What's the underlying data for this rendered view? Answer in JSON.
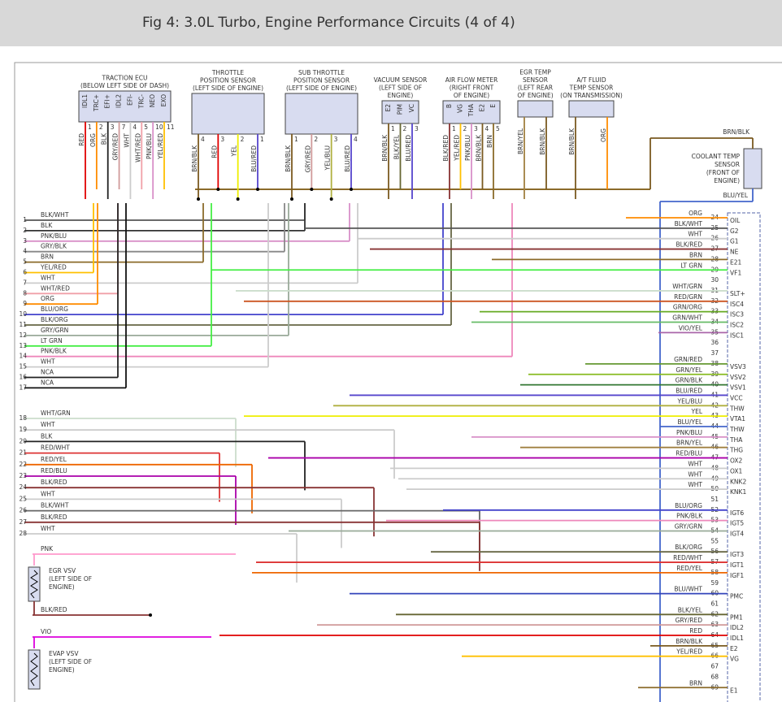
{
  "header": {
    "title": "Fig 4: 3.0L Turbo, Engine Performance Circuits (4 of 4)"
  },
  "components": [
    {
      "title": [
        "TRACTION ECU",
        "(BELOW LEFT SIDE OF DASH)"
      ],
      "pins": [
        {
          "name": "IDL1",
          "num": 1,
          "wire": "RED",
          "color": "#e00000"
        },
        {
          "name": "TRC+",
          "num": 2,
          "wire": "ORG",
          "color": "#ff8c00"
        },
        {
          "name": "EFI+",
          "num": 3,
          "wire": "BLK",
          "color": "#222222"
        },
        {
          "name": "IDL2",
          "num": 7,
          "wire": "GRY/RED",
          "color": "#d09a9a"
        },
        {
          "name": "EFI-",
          "num": 4,
          "wire": "WHT",
          "color": "#cccccc"
        },
        {
          "name": "TRC-",
          "num": 5,
          "wire": "WHT/RED",
          "color": "#f0a0a8"
        },
        {
          "name": "NEO",
          "num": 10,
          "wire": "PNK/BLU",
          "color": "#d890c8"
        },
        {
          "name": "EXO",
          "num": 11,
          "wire": "YEL/RED",
          "color": "#ffc000"
        }
      ]
    },
    {
      "title": [
        "THROTTLE",
        "POSITION SENSOR",
        "(LEFT SIDE OF ENGINE)"
      ],
      "pins": [
        {
          "num": 4,
          "wire": "BRN/BLK",
          "color": "#7a5a20"
        },
        {
          "num": 3,
          "wire": "RED",
          "color": "#e00000"
        },
        {
          "num": 2,
          "wire": "YEL",
          "color": "#eeee00"
        },
        {
          "num": 1,
          "wire": "BLU/RED",
          "color": "#5544cc"
        }
      ]
    },
    {
      "title": [
        "SUB THROTTLE",
        "POSITION SENSOR",
        "(LEFT SIDE OF ENGINE)"
      ],
      "pins": [
        {
          "num": 1,
          "wire": "BRN/BLK",
          "color": "#7a5a20"
        },
        {
          "num": 2,
          "wire": "GRY/RED",
          "color": "#d09a9a"
        },
        {
          "num": 3,
          "wire": "YEL/BLU",
          "color": "#b0b040"
        },
        {
          "num": 4,
          "wire": "BLU/RED",
          "color": "#5544cc"
        }
      ]
    },
    {
      "title": [
        "VACUUM SENSOR",
        "(LEFT SIDE OF",
        "ENGINE)"
      ],
      "pins": [
        {
          "name": "E2",
          "num": 1,
          "wire": "BRN/BLK",
          "color": "#7a5a20"
        },
        {
          "name": "PIM",
          "num": 2,
          "wire": "BLK/YEL",
          "color": "#666633"
        },
        {
          "name": "VC",
          "num": 3,
          "wire": "BLU/RED",
          "color": "#5544cc"
        }
      ]
    },
    {
      "title": [
        "AIR FLOW METER",
        "(RIGHT FRONT",
        "OF ENGINE)"
      ],
      "pins": [
        {
          "name": "B",
          "num": 1,
          "wire": "BLK/RED",
          "color": "#883333"
        },
        {
          "name": "VG",
          "num": 2,
          "wire": "YEL/RED",
          "color": "#ffc000"
        },
        {
          "name": "THA",
          "num": 3,
          "wire": "PNK/BLU",
          "color": "#d890c8"
        },
        {
          "name": "E2",
          "num": 4,
          "wire": "BRN/BLK",
          "color": "#7a5a20"
        },
        {
          "name": "E",
          "num": 5,
          "wire": "BRN",
          "color": "#8b6b2a"
        }
      ]
    },
    {
      "title": [
        "EGR TEMP",
        "SENSOR",
        "(LEFT REAR",
        "OF ENGINE)"
      ],
      "pins": [
        {
          "wire": "BRN/YEL",
          "color": "#a08040"
        },
        {
          "wire": "BRN/BLK",
          "color": "#7a5a20"
        }
      ]
    },
    {
      "title": [
        "A/T FLUID",
        "TEMP SENSOR",
        "(ON TRANSMISSION)"
      ],
      "pins": [
        {
          "wire": "BRN/BLK",
          "color": "#7a5a20"
        },
        {
          "wire": "ORG",
          "color": "#ff8c00"
        }
      ]
    },
    {
      "title": [
        "COOLANT TEMP",
        "SENSOR",
        "(FRONT OF",
        "ENGINE)"
      ],
      "pins": [
        {
          "wire": "BRN/BLK",
          "color": "#7a5a20"
        },
        {
          "wire": "BLU/YEL",
          "color": "#4466cc"
        }
      ]
    }
  ],
  "left_wires": [
    {
      "num": 1,
      "label": "BLK/WHT",
      "color": "#555555"
    },
    {
      "num": 2,
      "label": "BLK",
      "color": "#333333"
    },
    {
      "num": 3,
      "label": "PNK/BLU",
      "color": "#d890c8"
    },
    {
      "num": 4,
      "label": "GRY/BLK",
      "color": "#888888"
    },
    {
      "num": 5,
      "label": "BRN",
      "color": "#8b6b2a"
    },
    {
      "num": 6,
      "label": "YEL/RED",
      "color": "#ffc000"
    },
    {
      "num": 7,
      "label": "WHT",
      "color": "#cccccc"
    },
    {
      "num": 8,
      "label": "WHT/RED",
      "color": "#f0a0a8"
    },
    {
      "num": 9,
      "label": "ORG",
      "color": "#ff8c00"
    },
    {
      "num": 10,
      "label": "BLU/ORG",
      "color": "#4444cc"
    },
    {
      "num": 11,
      "label": "BLK/ORG",
      "color": "#666644"
    },
    {
      "num": 12,
      "label": "GRY/GRN",
      "color": "#99aa99"
    },
    {
      "num": 13,
      "label": "LT GRN",
      "color": "#44ee44"
    },
    {
      "num": 14,
      "label": "PNK/BLK",
      "color": "#ee88bb"
    },
    {
      "num": 15,
      "label": "WHT",
      "color": "#cccccc"
    },
    {
      "num": 16,
      "label": "NCA",
      "color": "#222222"
    },
    {
      "num": 17,
      "label": "NCA",
      "color": "#111111"
    },
    {
      "num": 18,
      "label": "WHT/GRN",
      "color": "#ccddcc"
    },
    {
      "num": 19,
      "label": "WHT",
      "color": "#cccccc"
    },
    {
      "num": 20,
      "label": "BLK",
      "color": "#222222"
    },
    {
      "num": 21,
      "label": "RED/WHT",
      "color": "#dd3333"
    },
    {
      "num": 22,
      "label": "RED/YEL",
      "color": "#ee6600"
    },
    {
      "num": 23,
      "label": "RED/BLU",
      "color": "#aa00aa"
    },
    {
      "num": 24,
      "label": "BLK/RED",
      "color": "#883333"
    },
    {
      "num": 25,
      "label": "WHT",
      "color": "#cccccc"
    },
    {
      "num": 26,
      "label": "BLK/WHT",
      "color": "#666666"
    },
    {
      "num": 27,
      "label": "BLK/RED",
      "color": "#883333"
    },
    {
      "num": 28,
      "label": "WHT",
      "color": "#cccccc"
    }
  ],
  "vsvs": [
    {
      "in_wire": "PNK",
      "in_color": "#ff99cc",
      "title": [
        "EGR VSV",
        "(LEFT SIDE OF",
        "ENGINE)"
      ],
      "out_wire": "BLK/RED",
      "out_color": "#883333"
    },
    {
      "in_wire": "VIO",
      "in_color": "#dd00dd",
      "title": [
        "EVAP VSV",
        "(LEFT SIDE OF",
        "ENGINE)"
      ]
    }
  ],
  "ecu_rows": [
    {
      "pin": 24,
      "wire": "ORG",
      "name": "OIL",
      "color": "#ff8c00"
    },
    {
      "pin": 25,
      "wire": "BLK/WHT",
      "name": "G2",
      "color": "#555555"
    },
    {
      "pin": 26,
      "wire": "WHT",
      "name": "G1",
      "color": "#cccccc"
    },
    {
      "pin": 27,
      "wire": "BLK/RED",
      "name": "NE",
      "color": "#883333"
    },
    {
      "pin": 28,
      "wire": "BRN",
      "name": "E21",
      "color": "#8b6b2a"
    },
    {
      "pin": 29,
      "wire": "LT GRN",
      "name": "VF1",
      "color": "#44ee44"
    },
    {
      "pin": 30
    },
    {
      "pin": 31,
      "wire": "WHT/GRN",
      "name": "SLT+",
      "color": "#ccddcc"
    },
    {
      "pin": 32,
      "wire": "RED/GRN",
      "name": "ISC4",
      "color": "#cc5522"
    },
    {
      "pin": 33,
      "wire": "GRN/ORG",
      "name": "ISC3",
      "color": "#66aa22"
    },
    {
      "pin": 34,
      "wire": "GRN/WHT",
      "name": "ISC2",
      "color": "#66bb66"
    },
    {
      "pin": 35,
      "wire": "VIO/YEL",
      "name": "ISC1",
      "color": "#aa66aa"
    },
    {
      "pin": 36
    },
    {
      "pin": 37
    },
    {
      "pin": 38,
      "wire": "GRN/RED",
      "name": "VSV3",
      "color": "#669933"
    },
    {
      "pin": 39,
      "wire": "GRN/YEL",
      "name": "VSV2",
      "color": "#88bb22"
    },
    {
      "pin": 40,
      "wire": "GRN/BLK",
      "name": "VSV1",
      "color": "#337733"
    },
    {
      "pin": 41,
      "wire": "BLU/RED",
      "name": "VCC",
      "color": "#5544cc"
    },
    {
      "pin": 42,
      "wire": "YEL/BLU",
      "name": "THW",
      "color": "#b0b040"
    },
    {
      "pin": 43,
      "wire": "YEL",
      "name": "VTA1",
      "color": "#eeee00"
    },
    {
      "pin": 44,
      "wire": "BLU/YEL",
      "name": "THW",
      "color": "#4466cc"
    },
    {
      "pin": 45,
      "wire": "PNK/BLU",
      "name": "THA",
      "color": "#d890c8"
    },
    {
      "pin": 46,
      "wire": "BRN/YEL",
      "name": "THG",
      "color": "#a08040"
    },
    {
      "pin": 47,
      "wire": "RED/BLU",
      "name": "OX2",
      "color": "#aa00aa"
    },
    {
      "pin": 48,
      "wire": "WHT",
      "name": "OX1",
      "color": "#cccccc"
    },
    {
      "pin": 49,
      "wire": "WHT",
      "name": "KNK2",
      "color": "#cccccc"
    },
    {
      "pin": 50,
      "wire": "WHT",
      "name": "KNK1",
      "color": "#cccccc"
    },
    {
      "pin": 51
    },
    {
      "pin": 52,
      "wire": "BLU/ORG",
      "name": "IGT6",
      "color": "#4444cc"
    },
    {
      "pin": 53,
      "wire": "PNK/BLK",
      "name": "IGT5",
      "color": "#ee88bb"
    },
    {
      "pin": 54,
      "wire": "GRY/GRN",
      "name": "IGT4",
      "color": "#99aa99"
    },
    {
      "pin": 55
    },
    {
      "pin": 56,
      "wire": "BLK/ORG",
      "name": "IGT3",
      "color": "#666644"
    },
    {
      "pin": 57,
      "wire": "RED/WHT",
      "name": "IGT1",
      "color": "#dd3333"
    },
    {
      "pin": 58,
      "wire": "RED/YEL",
      "name": "IGF1",
      "color": "#ee6600"
    },
    {
      "pin": 59
    },
    {
      "pin": 60,
      "wire": "BLU/WHT",
      "name": "PMC",
      "color": "#3344bb"
    },
    {
      "pin": 61
    },
    {
      "pin": 62,
      "wire": "BLK/YEL",
      "name": "PM1",
      "color": "#666633"
    },
    {
      "pin": 63,
      "wire": "GRY/RED",
      "name": "IDL2",
      "color": "#d09a9a"
    },
    {
      "pin": 64,
      "wire": "RED",
      "name": "IDL1",
      "color": "#e00000"
    },
    {
      "pin": 65,
      "wire": "BRN/BLK",
      "name": "E2",
      "color": "#7a5a20"
    },
    {
      "pin": 66,
      "wire": "YEL/RED",
      "name": "VG",
      "color": "#ffc000"
    },
    {
      "pin": 67
    },
    {
      "pin": 68
    },
    {
      "pin": 69,
      "wire": "BRN",
      "name": "E1",
      "color": "#8b6b2a"
    }
  ]
}
